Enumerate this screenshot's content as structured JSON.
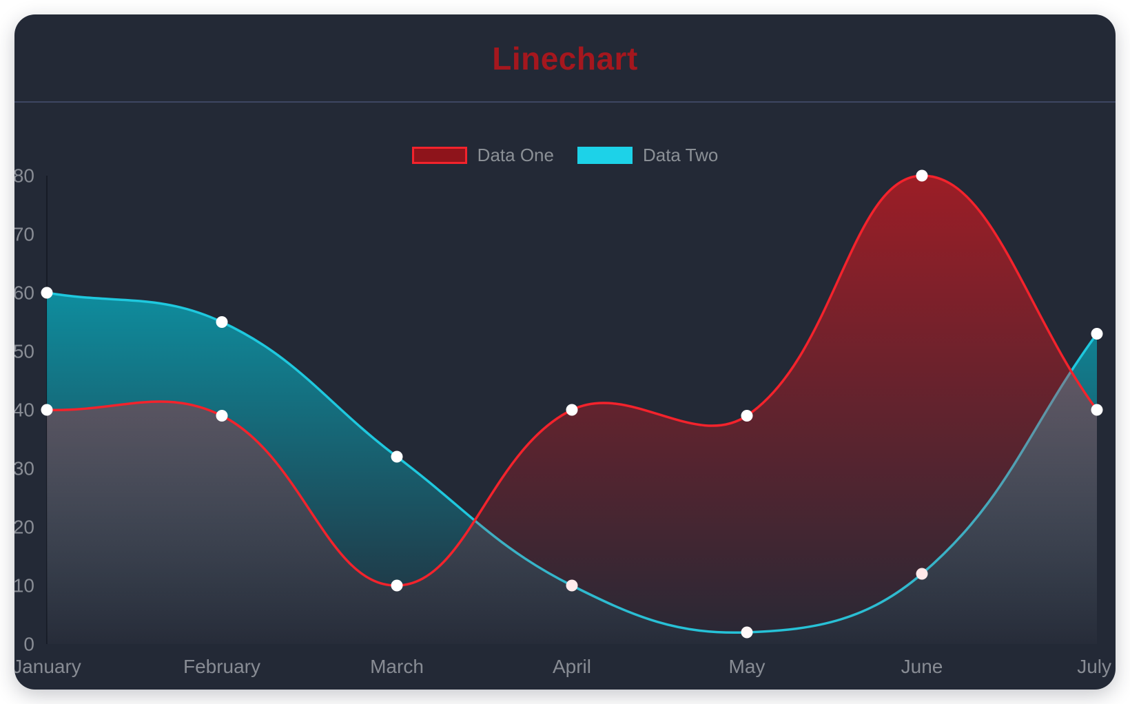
{
  "title": {
    "text": "Linechart",
    "color": "#a5171e"
  },
  "card": {
    "background": "#232936",
    "divider_color": "#3d4663"
  },
  "legend": {
    "text_color": "#8b9096",
    "items": [
      {
        "label": "Data One",
        "swatch_fill": "#8e141b",
        "swatch_border": "#f3232c"
      },
      {
        "label": "Data Two",
        "swatch_fill": "#1dd2e8",
        "swatch_border": "#1dd2e8"
      }
    ]
  },
  "chart_data": {
    "type": "line",
    "categories": [
      "January",
      "February",
      "March",
      "April",
      "May",
      "June",
      "July"
    ],
    "series": [
      {
        "name": "Data One",
        "values": [
          40,
          39,
          10,
          40,
          39,
          80,
          40
        ],
        "line_color": "#f3232c",
        "fill_rgb": "255,20,25",
        "fill_alpha_top": 0.55
      },
      {
        "name": "Data Two",
        "values": [
          60,
          55,
          32,
          10,
          2,
          12,
          53
        ],
        "line_color": "#1fc8de",
        "fill_rgb": "0,210,230",
        "fill_alpha_top": 0.78
      }
    ],
    "title": "Linechart",
    "xlabel": "",
    "ylabel": "",
    "ylim": [
      0,
      80
    ],
    "yticks": [
      0,
      10,
      20,
      30,
      40,
      50,
      60,
      70,
      80
    ],
    "grid": false,
    "legend_position": "top",
    "curve": "smooth",
    "point_color": "#ffffff",
    "axis_text_color": "#888c94",
    "axis_line_color": "rgba(12,16,26,0.55)"
  }
}
